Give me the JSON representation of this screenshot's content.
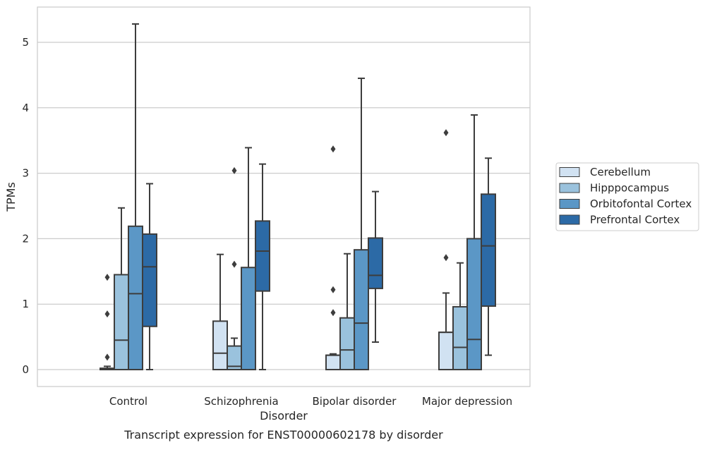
{
  "chart_data": {
    "type": "box",
    "caption": "Transcript expression for ENST00000602178 by disorder",
    "xlabel": "Disorder",
    "ylabel": "TPMs",
    "ylim": [
      -0.25,
      5.5
    ],
    "yticks": [
      0,
      1,
      2,
      3,
      4,
      5
    ],
    "grid": "horizontal",
    "legend_position": "right",
    "categories": [
      "Control",
      "Schizophrenia",
      "Bipolar disorder",
      "Major depression"
    ],
    "series": [
      {
        "name": "Cerebellum",
        "color": "#d1e2f2",
        "boxes": [
          {
            "whislo": 0.0,
            "q1": 0.0,
            "med": 0.01,
            "q3": 0.02,
            "whishi": 0.05,
            "fliers": [
              0.19,
              0.85,
              1.41
            ]
          },
          {
            "whislo": 0.0,
            "q1": 0.0,
            "med": 0.25,
            "q3": 0.74,
            "whishi": 1.76,
            "fliers": []
          },
          {
            "whislo": 0.0,
            "q1": 0.0,
            "med": 0.22,
            "q3": 0.22,
            "whishi": 0.24,
            "fliers": [
              0.87,
              1.22,
              3.37
            ]
          },
          {
            "whislo": 0.0,
            "q1": 0.0,
            "med": 0.57,
            "q3": 0.57,
            "whishi": 1.17,
            "fliers": [
              1.71,
              3.62
            ]
          }
        ]
      },
      {
        "name": "Hipppocampus",
        "color": "#9ac2dd",
        "boxes": [
          {
            "whislo": 0.0,
            "q1": 0.0,
            "med": 0.45,
            "q3": 1.45,
            "whishi": 2.47,
            "fliers": []
          },
          {
            "whislo": 0.0,
            "q1": 0.0,
            "med": 0.05,
            "q3": 0.36,
            "whishi": 0.48,
            "fliers": [
              1.61,
              3.04
            ]
          },
          {
            "whislo": 0.0,
            "q1": 0.0,
            "med": 0.3,
            "q3": 0.79,
            "whishi": 1.77,
            "fliers": []
          },
          {
            "whislo": 0.0,
            "q1": 0.0,
            "med": 0.34,
            "q3": 0.96,
            "whishi": 1.63,
            "fliers": []
          }
        ]
      },
      {
        "name": "Orbitofontal Cortex",
        "color": "#5b97c6",
        "boxes": [
          {
            "whislo": 0.0,
            "q1": 0.0,
            "med": 1.16,
            "q3": 2.19,
            "whishi": 5.28,
            "fliers": []
          },
          {
            "whislo": 0.0,
            "q1": 0.0,
            "med": 0.0,
            "q3": 1.56,
            "whishi": 3.39,
            "fliers": []
          },
          {
            "whislo": 0.0,
            "q1": 0.0,
            "med": 0.71,
            "q3": 1.83,
            "whishi": 4.45,
            "fliers": []
          },
          {
            "whislo": 0.0,
            "q1": 0.0,
            "med": 0.46,
            "q3": 2.0,
            "whishi": 3.89,
            "fliers": []
          }
        ]
      },
      {
        "name": "Prefrontal Cortex",
        "color": "#2c6aa6",
        "boxes": [
          {
            "whislo": 0.0,
            "q1": 0.66,
            "med": 1.57,
            "q3": 2.07,
            "whishi": 2.84,
            "fliers": []
          },
          {
            "whislo": 0.0,
            "q1": 1.2,
            "med": 1.81,
            "q3": 2.27,
            "whishi": 3.14,
            "fliers": []
          },
          {
            "whislo": 0.42,
            "q1": 1.24,
            "med": 1.44,
            "q3": 2.01,
            "whishi": 2.72,
            "fliers": []
          },
          {
            "whislo": 0.22,
            "q1": 0.97,
            "med": 1.89,
            "q3": 2.68,
            "whishi": 3.23,
            "fliers": []
          }
        ]
      }
    ]
  }
}
